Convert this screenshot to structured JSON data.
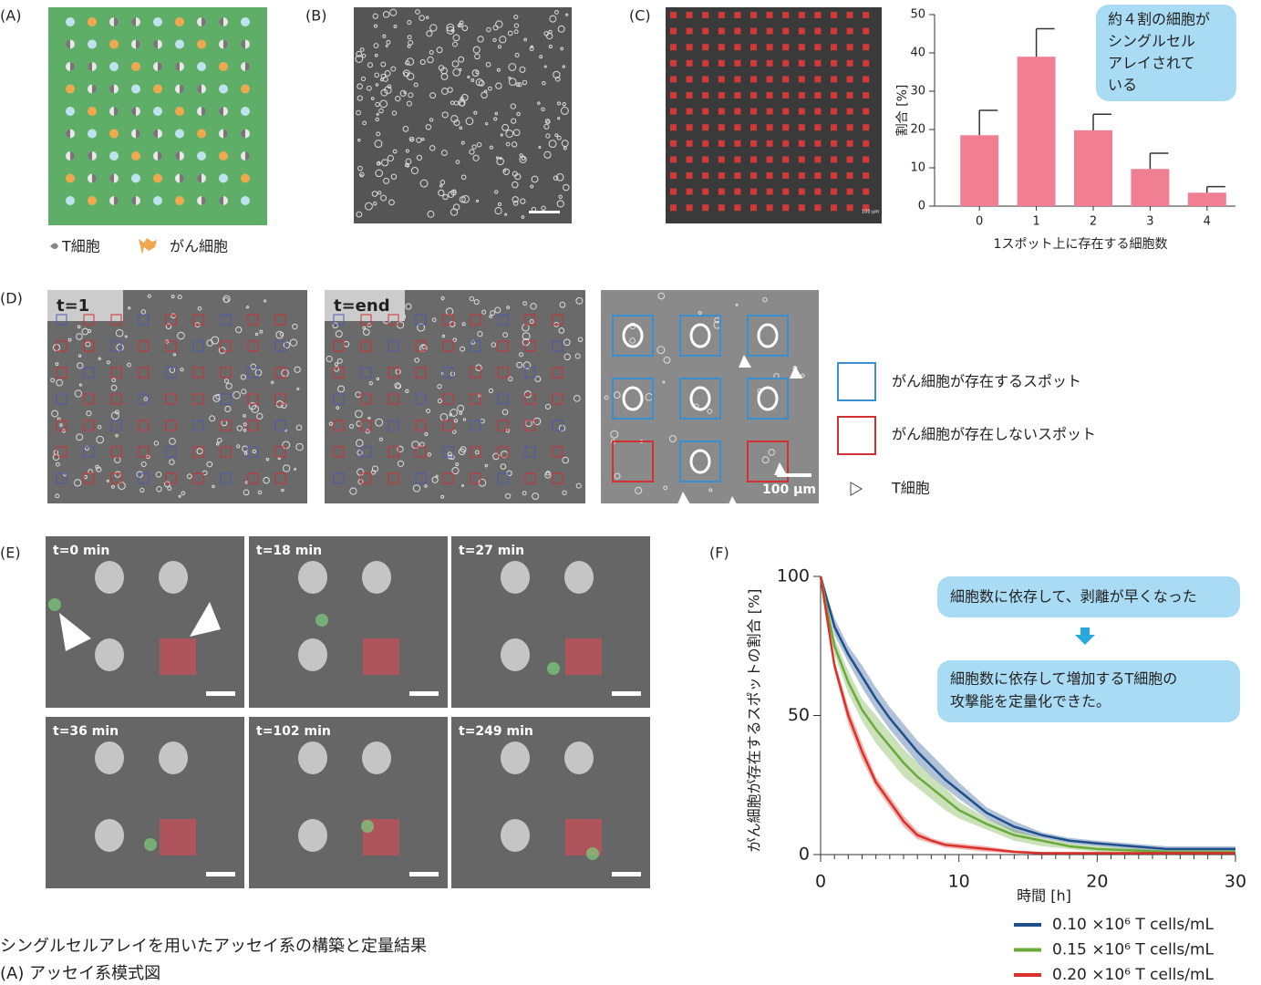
{
  "panel_labels": [
    "(A)",
    "(B)",
    "(C)",
    "(D)",
    "(E)",
    "(F)"
  ],
  "schematic_legend": [
    "T細胞",
    "がん細胞"
  ],
  "c_scale": "100 µm",
  "d_tabs": [
    "t=1",
    "t=end"
  ],
  "d_scale": "100 µm",
  "d_legend": [
    "がん細胞が存在するスポット",
    "がん細胞が存在しないスポット",
    "T細胞"
  ],
  "e_times": [
    "t=0 min",
    "t=18 min",
    "t=27 min",
    "t=36 min",
    "t=102 min",
    "t=249 min"
  ],
  "caption": [
    "シングルセルアレイを用いたアッセイ系の構築と定量結果",
    "(A) アッセイ系模式図"
  ],
  "chart_data": [
    {
      "type": "bar",
      "categories": [
        "0",
        "1",
        "2",
        "3",
        "4"
      ],
      "values": [
        18.5,
        39,
        19.8,
        9.7,
        3.5
      ],
      "errors": [
        6.5,
        7.3,
        4.2,
        4.1,
        1.6
      ],
      "color": "#f07f93",
      "ylim": [
        0,
        50
      ],
      "yticks": [
        0,
        10,
        20,
        30,
        40,
        50
      ],
      "xlabel": "1スポット上に存在する細胞数",
      "ylabel": "割合 [%]",
      "annotation": [
        "約４割の細胞が",
        "シングルセル",
        "アレイされて",
        "いる"
      ]
    },
    {
      "type": "line",
      "x": [
        0,
        1,
        2,
        3,
        4,
        5,
        6,
        7,
        8,
        9,
        10,
        12,
        14,
        16,
        18,
        20,
        25,
        30
      ],
      "series": [
        {
          "name": "0.10 ×10⁶ T cells/mL",
          "color": "#1f4e8c",
          "values": [
            100,
            82,
            72,
            64,
            56,
            49,
            43,
            37,
            32,
            27,
            23,
            15,
            10,
            7,
            5,
            4,
            2,
            2
          ],
          "lower": [
            100,
            79,
            69,
            60,
            52,
            45,
            39,
            33,
            28,
            24,
            20,
            13,
            8,
            6,
            4,
            3,
            1,
            1
          ],
          "upper": [
            100,
            85,
            75,
            68,
            60,
            53,
            47,
            41,
            36,
            31,
            26,
            17,
            12,
            8,
            6,
            5,
            3,
            3
          ]
        },
        {
          "name": "0.15 ×10⁶ T cells/mL",
          "color": "#6aaa3a",
          "values": [
            100,
            75,
            62,
            52,
            45,
            39,
            33,
            28,
            24,
            20,
            16,
            11,
            7,
            5,
            3,
            2,
            1,
            1
          ],
          "lower": [
            100,
            72,
            58,
            48,
            40,
            34,
            28,
            24,
            20,
            16,
            13,
            9,
            5,
            3,
            2,
            1,
            0.5,
            0.5
          ],
          "upper": [
            100,
            78,
            66,
            56,
            50,
            44,
            38,
            33,
            28,
            24,
            19,
            13,
            9,
            6,
            4,
            3,
            1.5,
            1.5
          ]
        },
        {
          "name": "0.20 ×10⁶ T cells/mL",
          "color": "#d9312b",
          "values": [
            100,
            68,
            50,
            37,
            26,
            19,
            12,
            7,
            5,
            3.5,
            3,
            2,
            1,
            0.5,
            0.5,
            0.5,
            0.5,
            0.5
          ],
          "lower": [
            100,
            66,
            47,
            34,
            24,
            17,
            10,
            5.5,
            4,
            2.5,
            2,
            1,
            0.5,
            0.2,
            0.2,
            0.2,
            0.2,
            0.2
          ],
          "upper": [
            100,
            70,
            53,
            40,
            28,
            21,
            14,
            8.5,
            6,
            4.5,
            4,
            3,
            1.5,
            1,
            1,
            1,
            1,
            1
          ]
        }
      ],
      "xlim": [
        0,
        30
      ],
      "ylim": [
        0,
        100
      ],
      "xticks": [
        0,
        10,
        20,
        30
      ],
      "yticks": [
        0,
        50,
        100
      ],
      "xminorticks": [
        1,
        2,
        3,
        4,
        5,
        6,
        7,
        8,
        9,
        11,
        12,
        13,
        14,
        15,
        16,
        17,
        18,
        19,
        21,
        22,
        23,
        24,
        25,
        26,
        27,
        28,
        29
      ],
      "xlabel": "時間 [h]",
      "ylabel": "がん細胞が存在するスポットの割合 [%]",
      "annotations": [
        [
          "細胞数に依存して、剥離が早くなった"
        ],
        [
          "細胞数に依存して増加するT細胞の",
          "攻撃能を定量化できた。"
        ]
      ]
    }
  ]
}
